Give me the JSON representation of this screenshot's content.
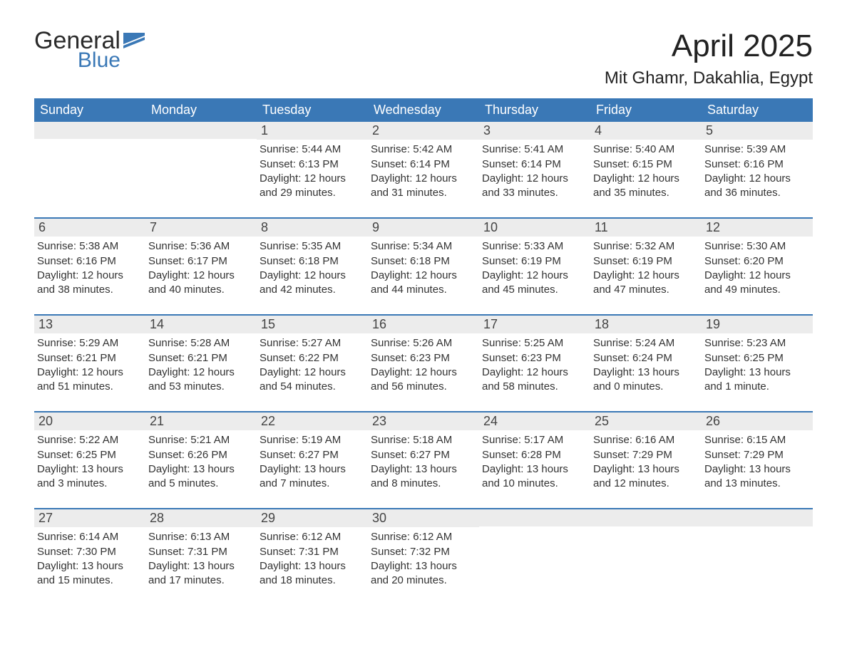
{
  "brand": {
    "word1": "General",
    "word2": "Blue",
    "color1": "#2a2a2a",
    "color2": "#3a78b6"
  },
  "title": "April 2025",
  "location": "Mit Ghamr, Dakahlia, Egypt",
  "colors": {
    "header_bg": "#3a78b6",
    "header_text": "#ffffff",
    "daynum_bg": "#ececec",
    "body_text": "#333333",
    "page_bg": "#ffffff",
    "week_border": "#3a78b6"
  },
  "fonts": {
    "title_size": 44,
    "location_size": 24,
    "header_size": 18,
    "daynum_size": 18,
    "body_size": 15
  },
  "layout": {
    "columns": 7,
    "column_labels": [
      "Sunday",
      "Monday",
      "Tuesday",
      "Wednesday",
      "Thursday",
      "Friday",
      "Saturday"
    ]
  },
  "weeks": [
    [
      {
        "n": "",
        "sunrise": "",
        "sunset": "",
        "daylight": ""
      },
      {
        "n": "",
        "sunrise": "",
        "sunset": "",
        "daylight": ""
      },
      {
        "n": "1",
        "sunrise": "Sunrise: 5:44 AM",
        "sunset": "Sunset: 6:13 PM",
        "daylight": "Daylight: 12 hours and 29 minutes."
      },
      {
        "n": "2",
        "sunrise": "Sunrise: 5:42 AM",
        "sunset": "Sunset: 6:14 PM",
        "daylight": "Daylight: 12 hours and 31 minutes."
      },
      {
        "n": "3",
        "sunrise": "Sunrise: 5:41 AM",
        "sunset": "Sunset: 6:14 PM",
        "daylight": "Daylight: 12 hours and 33 minutes."
      },
      {
        "n": "4",
        "sunrise": "Sunrise: 5:40 AM",
        "sunset": "Sunset: 6:15 PM",
        "daylight": "Daylight: 12 hours and 35 minutes."
      },
      {
        "n": "5",
        "sunrise": "Sunrise: 5:39 AM",
        "sunset": "Sunset: 6:16 PM",
        "daylight": "Daylight: 12 hours and 36 minutes."
      }
    ],
    [
      {
        "n": "6",
        "sunrise": "Sunrise: 5:38 AM",
        "sunset": "Sunset: 6:16 PM",
        "daylight": "Daylight: 12 hours and 38 minutes."
      },
      {
        "n": "7",
        "sunrise": "Sunrise: 5:36 AM",
        "sunset": "Sunset: 6:17 PM",
        "daylight": "Daylight: 12 hours and 40 minutes."
      },
      {
        "n": "8",
        "sunrise": "Sunrise: 5:35 AM",
        "sunset": "Sunset: 6:18 PM",
        "daylight": "Daylight: 12 hours and 42 minutes."
      },
      {
        "n": "9",
        "sunrise": "Sunrise: 5:34 AM",
        "sunset": "Sunset: 6:18 PM",
        "daylight": "Daylight: 12 hours and 44 minutes."
      },
      {
        "n": "10",
        "sunrise": "Sunrise: 5:33 AM",
        "sunset": "Sunset: 6:19 PM",
        "daylight": "Daylight: 12 hours and 45 minutes."
      },
      {
        "n": "11",
        "sunrise": "Sunrise: 5:32 AM",
        "sunset": "Sunset: 6:19 PM",
        "daylight": "Daylight: 12 hours and 47 minutes."
      },
      {
        "n": "12",
        "sunrise": "Sunrise: 5:30 AM",
        "sunset": "Sunset: 6:20 PM",
        "daylight": "Daylight: 12 hours and 49 minutes."
      }
    ],
    [
      {
        "n": "13",
        "sunrise": "Sunrise: 5:29 AM",
        "sunset": "Sunset: 6:21 PM",
        "daylight": "Daylight: 12 hours and 51 minutes."
      },
      {
        "n": "14",
        "sunrise": "Sunrise: 5:28 AM",
        "sunset": "Sunset: 6:21 PM",
        "daylight": "Daylight: 12 hours and 53 minutes."
      },
      {
        "n": "15",
        "sunrise": "Sunrise: 5:27 AM",
        "sunset": "Sunset: 6:22 PM",
        "daylight": "Daylight: 12 hours and 54 minutes."
      },
      {
        "n": "16",
        "sunrise": "Sunrise: 5:26 AM",
        "sunset": "Sunset: 6:23 PM",
        "daylight": "Daylight: 12 hours and 56 minutes."
      },
      {
        "n": "17",
        "sunrise": "Sunrise: 5:25 AM",
        "sunset": "Sunset: 6:23 PM",
        "daylight": "Daylight: 12 hours and 58 minutes."
      },
      {
        "n": "18",
        "sunrise": "Sunrise: 5:24 AM",
        "sunset": "Sunset: 6:24 PM",
        "daylight": "Daylight: 13 hours and 0 minutes."
      },
      {
        "n": "19",
        "sunrise": "Sunrise: 5:23 AM",
        "sunset": "Sunset: 6:25 PM",
        "daylight": "Daylight: 13 hours and 1 minute."
      }
    ],
    [
      {
        "n": "20",
        "sunrise": "Sunrise: 5:22 AM",
        "sunset": "Sunset: 6:25 PM",
        "daylight": "Daylight: 13 hours and 3 minutes."
      },
      {
        "n": "21",
        "sunrise": "Sunrise: 5:21 AM",
        "sunset": "Sunset: 6:26 PM",
        "daylight": "Daylight: 13 hours and 5 minutes."
      },
      {
        "n": "22",
        "sunrise": "Sunrise: 5:19 AM",
        "sunset": "Sunset: 6:27 PM",
        "daylight": "Daylight: 13 hours and 7 minutes."
      },
      {
        "n": "23",
        "sunrise": "Sunrise: 5:18 AM",
        "sunset": "Sunset: 6:27 PM",
        "daylight": "Daylight: 13 hours and 8 minutes."
      },
      {
        "n": "24",
        "sunrise": "Sunrise: 5:17 AM",
        "sunset": "Sunset: 6:28 PM",
        "daylight": "Daylight: 13 hours and 10 minutes."
      },
      {
        "n": "25",
        "sunrise": "Sunrise: 6:16 AM",
        "sunset": "Sunset: 7:29 PM",
        "daylight": "Daylight: 13 hours and 12 minutes."
      },
      {
        "n": "26",
        "sunrise": "Sunrise: 6:15 AM",
        "sunset": "Sunset: 7:29 PM",
        "daylight": "Daylight: 13 hours and 13 minutes."
      }
    ],
    [
      {
        "n": "27",
        "sunrise": "Sunrise: 6:14 AM",
        "sunset": "Sunset: 7:30 PM",
        "daylight": "Daylight: 13 hours and 15 minutes."
      },
      {
        "n": "28",
        "sunrise": "Sunrise: 6:13 AM",
        "sunset": "Sunset: 7:31 PM",
        "daylight": "Daylight: 13 hours and 17 minutes."
      },
      {
        "n": "29",
        "sunrise": "Sunrise: 6:12 AM",
        "sunset": "Sunset: 7:31 PM",
        "daylight": "Daylight: 13 hours and 18 minutes."
      },
      {
        "n": "30",
        "sunrise": "Sunrise: 6:12 AM",
        "sunset": "Sunset: 7:32 PM",
        "daylight": "Daylight: 13 hours and 20 minutes."
      },
      {
        "n": "",
        "sunrise": "",
        "sunset": "",
        "daylight": ""
      },
      {
        "n": "",
        "sunrise": "",
        "sunset": "",
        "daylight": ""
      },
      {
        "n": "",
        "sunrise": "",
        "sunset": "",
        "daylight": ""
      }
    ]
  ]
}
